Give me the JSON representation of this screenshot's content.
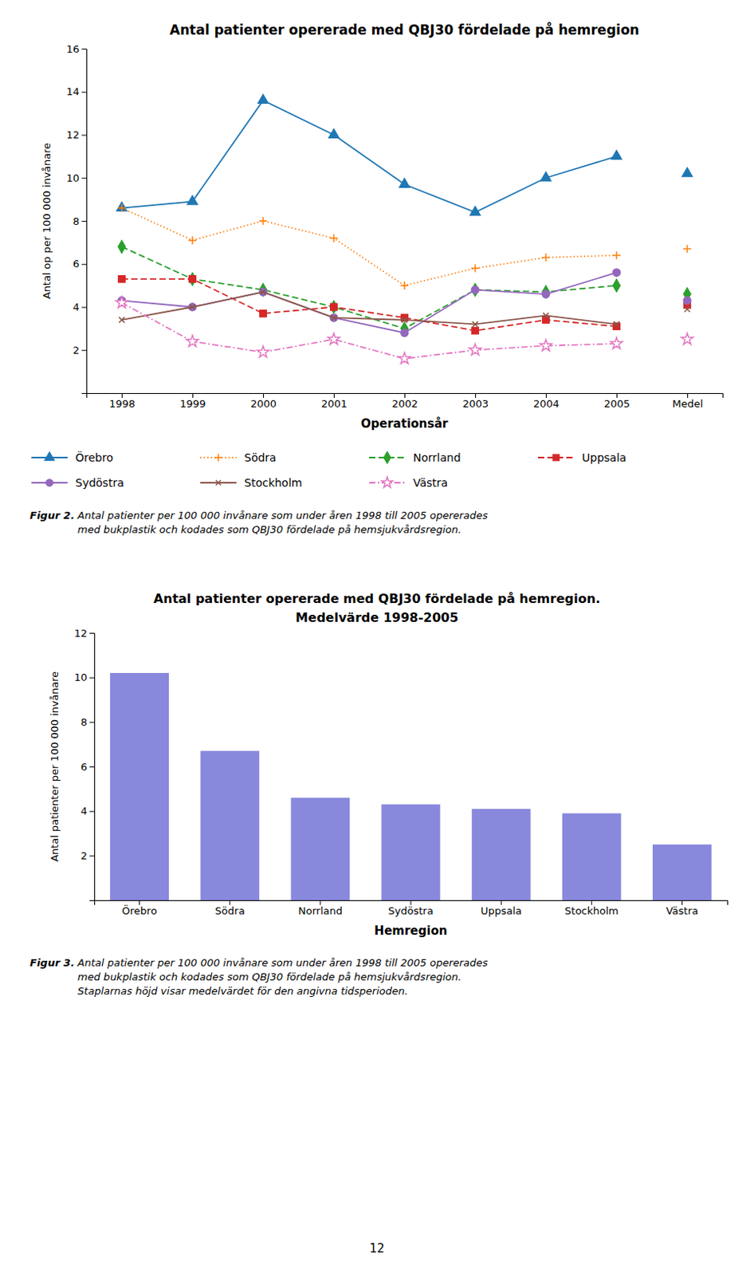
{
  "chart_data": [
    {
      "type": "line",
      "title": "Antal patienter opererade med QBJ30 fördelade på hemregion",
      "xlabel": "Operationsår",
      "ylabel": "Antal op per 100 000 invånare",
      "ylim": [
        0,
        16
      ],
      "yticks": [
        {
          "value": 0,
          "label": null
        },
        2,
        4,
        6,
        8,
        10,
        12,
        14,
        16
      ],
      "categories": [
        "1998",
        "1999",
        "2000",
        "2001",
        "2002",
        "2003",
        "2004",
        "2005",
        "Medel"
      ],
      "legend": "bottom",
      "series": [
        {
          "name": "Örebro",
          "values": [
            8.6,
            8.9,
            13.6,
            12.0,
            9.7,
            8.4,
            10.0,
            11.0,
            10.2
          ],
          "marker": "triangle",
          "line_style": "solid"
        },
        {
          "name": "Södra",
          "values": [
            8.6,
            7.1,
            8.0,
            7.2,
            5.0,
            5.8,
            6.3,
            6.4,
            6.7
          ],
          "marker": "plus",
          "line_style": "dotted"
        },
        {
          "name": "Norrland",
          "values": [
            6.8,
            5.3,
            4.8,
            4.0,
            3.0,
            4.8,
            4.7,
            5.0,
            4.6
          ],
          "marker": "diamond",
          "line_style": "dashed"
        },
        {
          "name": "Uppsala",
          "values": [
            5.3,
            5.3,
            3.7,
            4.0,
            3.5,
            2.9,
            3.4,
            3.1,
            4.1
          ],
          "marker": "square",
          "line_style": "dashed"
        },
        {
          "name": "Sydöstra",
          "values": [
            4.3,
            4.0,
            4.7,
            3.5,
            2.8,
            4.8,
            4.6,
            5.6,
            4.3
          ],
          "marker": "circle",
          "line_style": "solid"
        },
        {
          "name": "Stockholm",
          "values": [
            3.4,
            4.0,
            4.7,
            3.5,
            3.4,
            3.2,
            3.6,
            3.2,
            3.9
          ],
          "marker": "x",
          "line_style": "solid"
        },
        {
          "name": "Västra",
          "values": [
            4.2,
            2.4,
            1.9,
            2.5,
            1.6,
            2.0,
            2.2,
            2.3,
            2.5
          ],
          "marker": "star",
          "line_style": "dashdot"
        }
      ],
      "annotations": [
        "Figur 2.",
        " Antal patienter per 100 000 invånare som under åren 1998 till 2005 opererades\nmed bukplastik och kodades som QBJ30 fördelade på hemsjukvårdsregion."
      ]
    },
    {
      "type": "bar",
      "title": "Antal patienter opererade med QBJ30 fördelade på hemregion.",
      "subtitle": "Medelvärde 1998-2005",
      "xlabel": "Hemregion",
      "ylabel": "Antal patienter per 100 000 invånare",
      "ylim": [
        0,
        12
      ],
      "yticks": [
        {
          "value": 0,
          "label": null
        },
        2,
        4,
        6,
        8,
        10,
        12
      ],
      "categories": [
        "Örebro",
        "Södra",
        "Norrland",
        "Sydöstra",
        "Uppsala",
        "Stockholm",
        "Västra"
      ],
      "values": [
        10.2,
        6.7,
        4.6,
        4.3,
        4.1,
        3.9,
        2.5
      ],
      "color": "#8888dd",
      "annotations": [
        "Figur 3.",
        " Antal patienter per 100 000 invånare som under åren 1998 till 2005 opererades\nmed bukplastik och kodades som QBJ30 fördelade på hemsjukvårdsregion.\nStaplarnas höjd visar medelvärdet för den angivna tidsperioden.",
        "12"
      ]
    }
  ]
}
